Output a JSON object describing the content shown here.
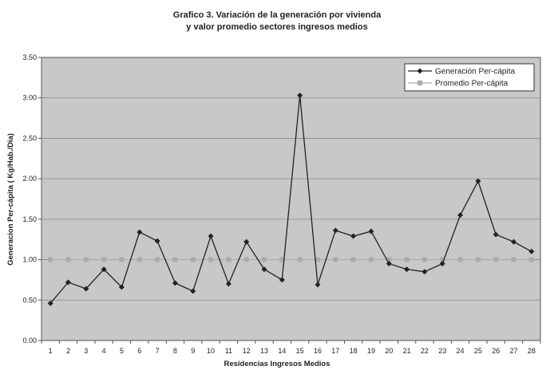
{
  "chart_data": {
    "type": "line",
    "title_line1": "Grafico 3. Variación de la generación por vivienda",
    "title_line2": "y valor promedio sectores ingresos medios",
    "xlabel": "Residencias Ingresos Medios",
    "ylabel": "Generacion Per-cápita ( Kg/Hab./Dia)",
    "ylim": [
      0,
      3.5
    ],
    "y_ticks": [
      "0.00",
      "0.50",
      "1.00",
      "1.50",
      "2.00",
      "2.50",
      "3.00",
      "3.50"
    ],
    "x": [
      1,
      2,
      3,
      4,
      5,
      6,
      7,
      8,
      9,
      10,
      11,
      12,
      13,
      14,
      15,
      16,
      17,
      18,
      19,
      20,
      21,
      22,
      23,
      24,
      25,
      26,
      27,
      28
    ],
    "grid": true,
    "legend_position": "top-right",
    "series": [
      {
        "name": "Generación Per-cápita",
        "color": "#222222",
        "marker": "diamond",
        "values": [
          0.46,
          0.72,
          0.64,
          0.88,
          0.66,
          1.34,
          1.23,
          0.71,
          0.61,
          1.29,
          0.7,
          1.22,
          0.88,
          0.75,
          3.03,
          0.69,
          1.36,
          1.29,
          1.35,
          0.95,
          0.88,
          0.85,
          0.95,
          1.55,
          1.97,
          1.31,
          1.22,
          1.1
        ]
      },
      {
        "name": "Promedio Per-cápita",
        "color": "#aaaaaa",
        "marker": "square",
        "values": [
          1.0,
          1.0,
          1.0,
          1.0,
          1.0,
          1.0,
          1.0,
          1.0,
          1.0,
          1.0,
          1.0,
          1.0,
          1.0,
          1.0,
          1.0,
          1.0,
          1.0,
          1.0,
          1.0,
          1.0,
          1.0,
          1.0,
          1.0,
          1.0,
          1.0,
          1.0,
          1.0,
          1.0
        ]
      }
    ]
  }
}
